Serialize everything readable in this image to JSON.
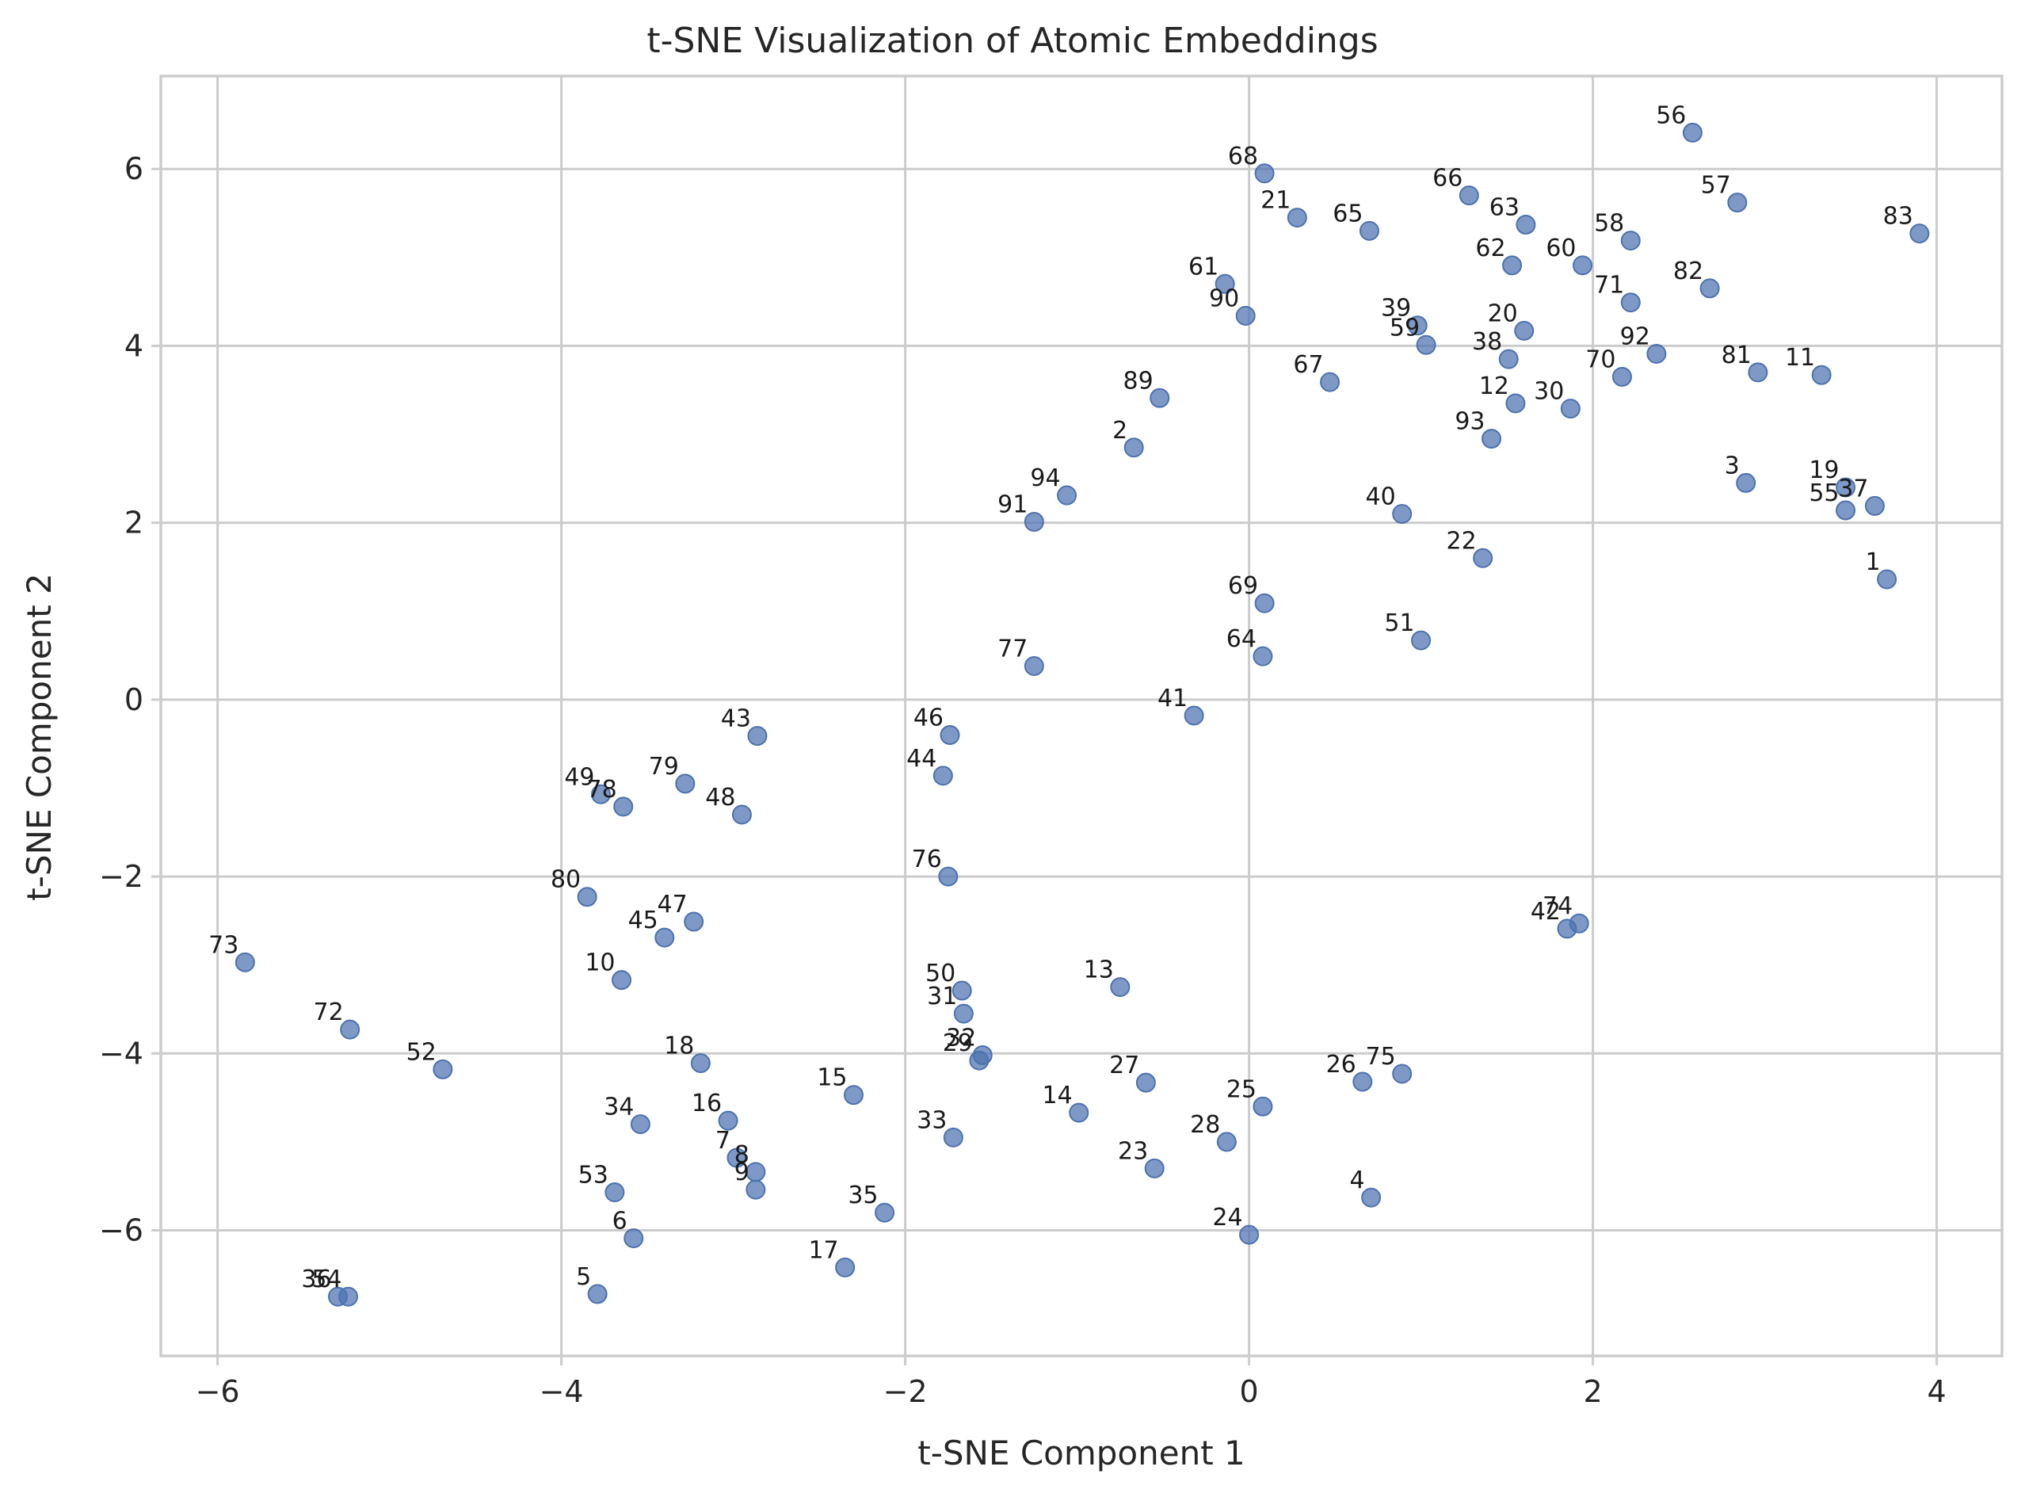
{
  "chart_data": {
    "type": "scatter",
    "title": "t-SNE Visualization of Atomic Embeddings",
    "xlabel": "t-SNE Component 1",
    "ylabel": "t-SNE Component 2",
    "xlim": [
      -6.33,
      4.38
    ],
    "ylim": [
      -7.42,
      7.05
    ],
    "xticks": [
      -6,
      -4,
      -2,
      0,
      2,
      4
    ],
    "yticks": [
      -6,
      -4,
      -2,
      0,
      2,
      4,
      6
    ],
    "grid": true,
    "legend": "none",
    "point_color": "#4c72b0",
    "points": [
      {
        "label": "1",
        "x": 3.71,
        "y": 1.36
      },
      {
        "label": "2",
        "x": -0.67,
        "y": 2.85
      },
      {
        "label": "3",
        "x": 2.89,
        "y": 2.45
      },
      {
        "label": "4",
        "x": 0.71,
        "y": -5.63
      },
      {
        "label": "5",
        "x": -3.79,
        "y": -6.72
      },
      {
        "label": "6",
        "x": -3.58,
        "y": -6.09
      },
      {
        "label": "7",
        "x": -2.98,
        "y": -5.18
      },
      {
        "label": "8",
        "x": -2.87,
        "y": -5.34
      },
      {
        "label": "9",
        "x": -2.87,
        "y": -5.54
      },
      {
        "label": "10",
        "x": -3.65,
        "y": -3.17
      },
      {
        "label": "11",
        "x": 3.33,
        "y": 3.67
      },
      {
        "label": "12",
        "x": 1.55,
        "y": 3.35
      },
      {
        "label": "13",
        "x": -0.75,
        "y": -3.25
      },
      {
        "label": "14",
        "x": -0.99,
        "y": -4.67
      },
      {
        "label": "15",
        "x": -2.3,
        "y": -4.47
      },
      {
        "label": "16",
        "x": -3.03,
        "y": -4.76
      },
      {
        "label": "17",
        "x": -2.35,
        "y": -6.42
      },
      {
        "label": "18",
        "x": -3.19,
        "y": -4.11
      },
      {
        "label": "19",
        "x": 3.47,
        "y": 2.4
      },
      {
        "label": "20",
        "x": 1.6,
        "y": 4.17
      },
      {
        "label": "21",
        "x": 0.28,
        "y": 5.45
      },
      {
        "label": "22",
        "x": 1.36,
        "y": 1.6
      },
      {
        "label": "23",
        "x": -0.55,
        "y": -5.3
      },
      {
        "label": "24",
        "x": 0.0,
        "y": -6.05
      },
      {
        "label": "25",
        "x": 0.08,
        "y": -4.6
      },
      {
        "label": "26",
        "x": 0.66,
        "y": -4.32
      },
      {
        "label": "27",
        "x": -0.6,
        "y": -4.33
      },
      {
        "label": "28",
        "x": -0.13,
        "y": -5.0
      },
      {
        "label": "29",
        "x": -1.57,
        "y": -4.08
      },
      {
        "label": "30",
        "x": 1.87,
        "y": 3.29
      },
      {
        "label": "31",
        "x": -1.66,
        "y": -3.55
      },
      {
        "label": "32",
        "x": -1.55,
        "y": -4.02
      },
      {
        "label": "33",
        "x": -1.72,
        "y": -4.95
      },
      {
        "label": "34",
        "x": -3.54,
        "y": -4.8
      },
      {
        "label": "35",
        "x": -2.12,
        "y": -5.8
      },
      {
        "label": "36",
        "x": -5.3,
        "y": -6.75
      },
      {
        "label": "37",
        "x": 3.64,
        "y": 2.19
      },
      {
        "label": "38",
        "x": 1.51,
        "y": 3.85
      },
      {
        "label": "39",
        "x": 0.98,
        "y": 4.23
      },
      {
        "label": "40",
        "x": 0.89,
        "y": 2.1
      },
      {
        "label": "41",
        "x": -0.32,
        "y": -0.18
      },
      {
        "label": "42",
        "x": 1.85,
        "y": -2.59
      },
      {
        "label": "43",
        "x": -2.86,
        "y": -0.41
      },
      {
        "label": "44",
        "x": -1.78,
        "y": -0.86
      },
      {
        "label": "45",
        "x": -3.4,
        "y": -2.69
      },
      {
        "label": "46",
        "x": -1.74,
        "y": -0.4
      },
      {
        "label": "47",
        "x": -3.23,
        "y": -2.51
      },
      {
        "label": "48",
        "x": -2.95,
        "y": -1.3
      },
      {
        "label": "49",
        "x": -3.77,
        "y": -1.07
      },
      {
        "label": "50",
        "x": -1.67,
        "y": -3.29
      },
      {
        "label": "51",
        "x": 1.0,
        "y": 0.67
      },
      {
        "label": "52",
        "x": -4.69,
        "y": -4.18
      },
      {
        "label": "53",
        "x": -3.69,
        "y": -5.57
      },
      {
        "label": "54",
        "x": -5.24,
        "y": -6.75
      },
      {
        "label": "55",
        "x": 3.47,
        "y": 2.14
      },
      {
        "label": "56",
        "x": 2.58,
        "y": 6.41
      },
      {
        "label": "57",
        "x": 2.84,
        "y": 5.62
      },
      {
        "label": "58",
        "x": 2.22,
        "y": 5.19
      },
      {
        "label": "59",
        "x": 1.03,
        "y": 4.01
      },
      {
        "label": "60",
        "x": 1.94,
        "y": 4.91
      },
      {
        "label": "61",
        "x": -0.14,
        "y": 4.7
      },
      {
        "label": "62",
        "x": 1.53,
        "y": 4.91
      },
      {
        "label": "63",
        "x": 1.61,
        "y": 5.37
      },
      {
        "label": "64",
        "x": 0.08,
        "y": 0.49
      },
      {
        "label": "65",
        "x": 0.7,
        "y": 5.3
      },
      {
        "label": "66",
        "x": 1.28,
        "y": 5.7
      },
      {
        "label": "67",
        "x": 0.47,
        "y": 3.59
      },
      {
        "label": "68",
        "x": 0.09,
        "y": 5.95
      },
      {
        "label": "69",
        "x": 0.09,
        "y": 1.09
      },
      {
        "label": "70",
        "x": 2.17,
        "y": 3.65
      },
      {
        "label": "71",
        "x": 2.22,
        "y": 4.49
      },
      {
        "label": "72",
        "x": -5.23,
        "y": -3.73
      },
      {
        "label": "73",
        "x": -5.84,
        "y": -2.97
      },
      {
        "label": "74",
        "x": 1.92,
        "y": -2.53
      },
      {
        "label": "75",
        "x": 0.89,
        "y": -4.23
      },
      {
        "label": "76",
        "x": -1.75,
        "y": -2.0
      },
      {
        "label": "77",
        "x": -1.25,
        "y": 0.38
      },
      {
        "label": "78",
        "x": -3.64,
        "y": -1.21
      },
      {
        "label": "79",
        "x": -3.28,
        "y": -0.95
      },
      {
        "label": "80",
        "x": -3.85,
        "y": -2.23
      },
      {
        "label": "81",
        "x": 2.96,
        "y": 3.7
      },
      {
        "label": "82",
        "x": 2.68,
        "y": 4.65
      },
      {
        "label": "83",
        "x": 3.9,
        "y": 5.27
      },
      {
        "label": "89",
        "x": -0.52,
        "y": 3.41
      },
      {
        "label": "90",
        "x": -0.02,
        "y": 4.34
      },
      {
        "label": "91",
        "x": -1.25,
        "y": 2.01
      },
      {
        "label": "92",
        "x": 2.37,
        "y": 3.91
      },
      {
        "label": "93",
        "x": 1.41,
        "y": 2.95
      },
      {
        "label": "94",
        "x": -1.06,
        "y": 2.31
      }
    ]
  }
}
